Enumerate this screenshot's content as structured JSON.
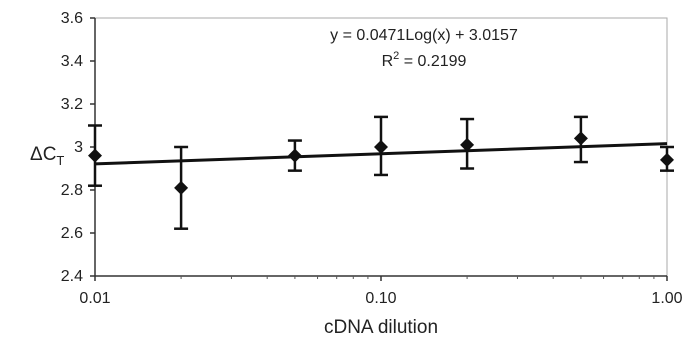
{
  "chart_data": {
    "type": "scatter",
    "xlabel": "cDNA dilution",
    "ylabel": {
      "main": "ΔC",
      "sub": "T"
    },
    "x_scale": "log",
    "xlim": [
      0.01,
      1.0
    ],
    "ylim": [
      2.4,
      3.6
    ],
    "x_ticks": [
      {
        "value": 0.01,
        "label": "0.01"
      },
      {
        "value": 0.1,
        "label": "0.10"
      },
      {
        "value": 1.0,
        "label": "1.00"
      }
    ],
    "y_ticks": [
      {
        "value": 2.4,
        "label": "2.4"
      },
      {
        "value": 2.6,
        "label": "2.6"
      },
      {
        "value": 2.8,
        "label": "2.8"
      },
      {
        "value": 3.0,
        "label": "3"
      },
      {
        "value": 3.2,
        "label": "3.2"
      },
      {
        "value": 3.4,
        "label": "3.4"
      },
      {
        "value": 3.6,
        "label": "3.6"
      }
    ],
    "grid": false,
    "series": [
      {
        "marker": "diamond",
        "color": "#111111",
        "points": [
          {
            "x": 0.01,
            "y": 2.96,
            "err_low": 2.82,
            "err_high": 3.1
          },
          {
            "x": 0.02,
            "y": 2.81,
            "err_low": 2.62,
            "err_high": 3.0
          },
          {
            "x": 0.05,
            "y": 2.96,
            "err_low": 2.89,
            "err_high": 3.03
          },
          {
            "x": 0.1,
            "y": 3.0,
            "err_low": 2.87,
            "err_high": 3.14
          },
          {
            "x": 0.2,
            "y": 3.01,
            "err_low": 2.9,
            "err_high": 3.13
          },
          {
            "x": 0.5,
            "y": 3.04,
            "err_low": 2.93,
            "err_high": 3.14
          },
          {
            "x": 1.0,
            "y": 2.94,
            "err_low": 2.89,
            "err_high": 3.0
          }
        ]
      }
    ],
    "trendline": {
      "type": "logarithmic",
      "slope": 0.0471,
      "intercept": 3.0157,
      "equation_label": "y = 0.0471Log(x) + 3.0157",
      "r2_label": {
        "main": "R",
        "sup": "2",
        "rest": " = 0.2199"
      }
    }
  }
}
